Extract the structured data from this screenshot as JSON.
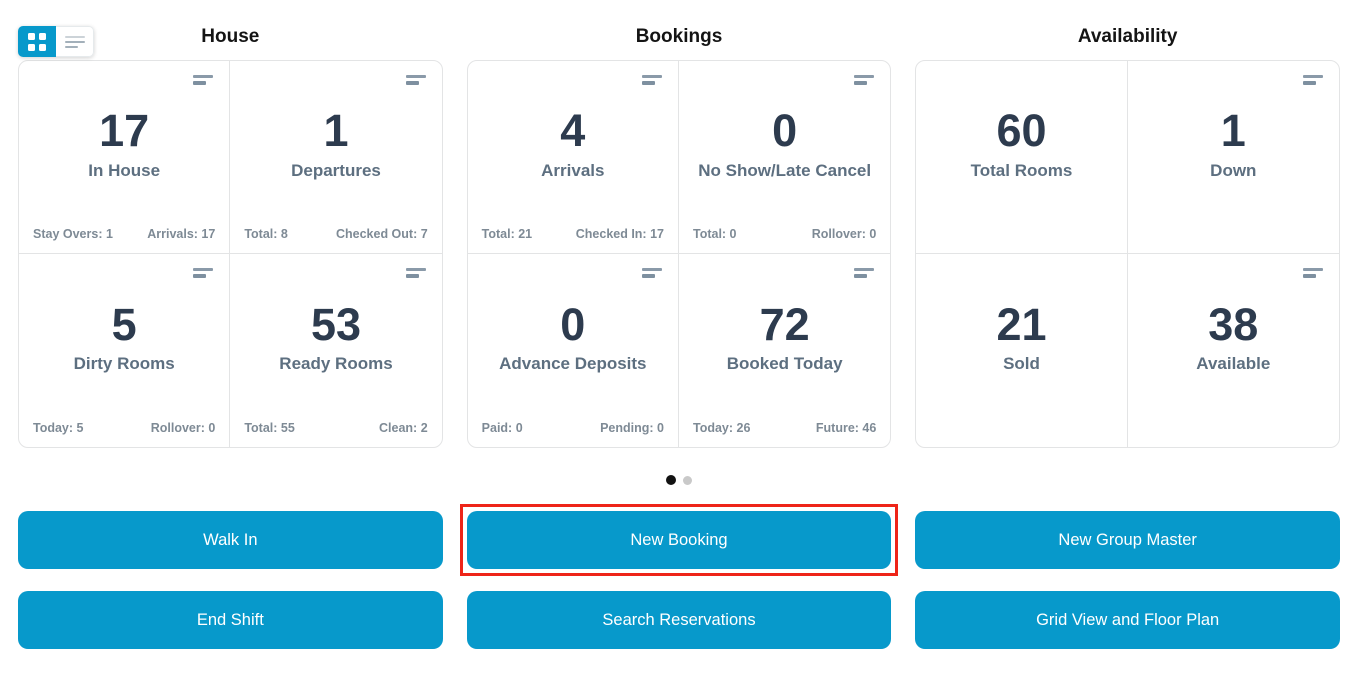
{
  "view_toggle": {
    "grid_button_icon": "grid-view-icon",
    "list_button_icon": "list-view-icon",
    "active": "grid"
  },
  "sections": [
    {
      "title": "House",
      "cards": [
        {
          "value": "17",
          "label": "In House",
          "has_icon": true,
          "stats": [
            "Stay Overs: 1",
            "Arrivals: 17"
          ]
        },
        {
          "value": "1",
          "label": "Departures",
          "has_icon": true,
          "stats": [
            "Total: 8",
            "Checked Out: 7"
          ]
        },
        {
          "value": "5",
          "label": "Dirty Rooms",
          "has_icon": true,
          "stats": [
            "Today: 5",
            "Rollover: 0"
          ]
        },
        {
          "value": "53",
          "label": "Ready Rooms",
          "has_icon": true,
          "stats": [
            "Total: 55",
            "Clean: 2"
          ]
        }
      ]
    },
    {
      "title": "Bookings",
      "cards": [
        {
          "value": "4",
          "label": "Arrivals",
          "has_icon": true,
          "stats": [
            "Total: 21",
            "Checked In: 17"
          ]
        },
        {
          "value": "0",
          "label": "No Show/Late Cancel",
          "has_icon": true,
          "stats": [
            "Total: 0",
            "Rollover: 0"
          ]
        },
        {
          "value": "0",
          "label": "Advance Deposits",
          "has_icon": true,
          "stats": [
            "Paid: 0",
            "Pending: 0"
          ]
        },
        {
          "value": "72",
          "label": "Booked Today",
          "has_icon": true,
          "stats": [
            "Today: 26",
            "Future: 46"
          ]
        }
      ]
    },
    {
      "title": "Availability",
      "cards": [
        {
          "value": "60",
          "label": "Total Rooms",
          "has_icon": false,
          "stats": []
        },
        {
          "value": "1",
          "label": "Down",
          "has_icon": true,
          "stats": []
        },
        {
          "value": "21",
          "label": "Sold",
          "has_icon": false,
          "stats": []
        },
        {
          "value": "38",
          "label": "Available",
          "has_icon": true,
          "stats": []
        }
      ]
    }
  ],
  "carousel": {
    "dot_count": 2,
    "active_dot_index": 0
  },
  "buttons": {
    "walk_in": "Walk In",
    "new_booking": "New Booking",
    "new_group_master": "New Group Master",
    "end_shift": "End Shift",
    "search_reservations": "Search Reservations",
    "grid_view_floor_plan": "Grid View and Floor Plan"
  },
  "highlight": {
    "target": "new_booking",
    "color": "#ee2418"
  },
  "colors": {
    "accent_blue": "#0799cb",
    "number_text": "#2d3b4e",
    "label_text": "#5d6f80",
    "stat_text": "#7e8a95",
    "card_border": "#e3e4e5",
    "active_dot": "#121212",
    "inactive_dot": "#c9c9c9"
  },
  "icons": {
    "card_corner": "details-lines-icon",
    "toggle_left": "grid-view-icon",
    "toggle_right": "list-view-icon"
  }
}
